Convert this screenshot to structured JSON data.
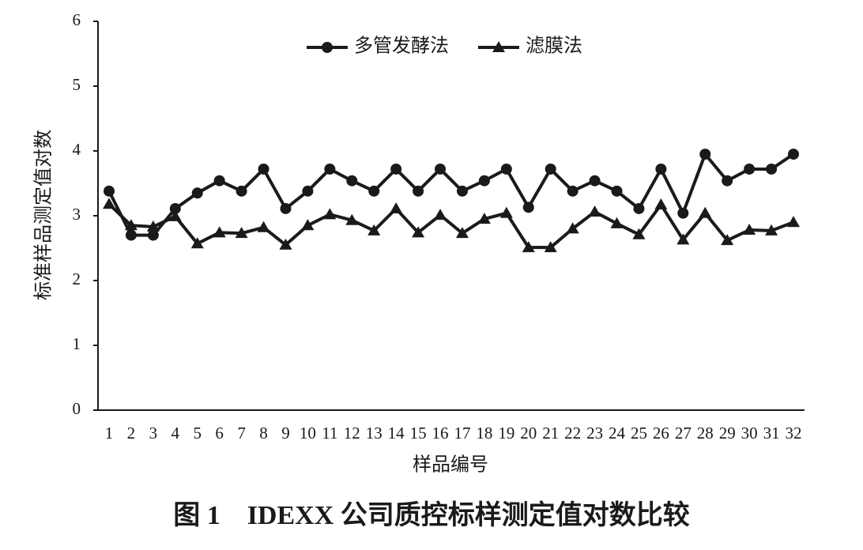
{
  "chart_data": {
    "type": "line",
    "title": "图 1　IDEXX 公司质控标样测定值对数比较",
    "x_label": "样品编号",
    "y_label": "标准样品测定值对数",
    "categories": [
      "1",
      "2",
      "3",
      "4",
      "5",
      "6",
      "7",
      "8",
      "9",
      "10",
      "11",
      "12",
      "13",
      "14",
      "15",
      "16",
      "17",
      "18",
      "19",
      "20",
      "21",
      "22",
      "23",
      "24",
      "25",
      "26",
      "27",
      "28",
      "29",
      "30",
      "31",
      "32"
    ],
    "series": [
      {
        "name": "多管发酵法",
        "color": "#1a1a1a",
        "marker": "circle",
        "values": [
          3.38,
          2.7,
          2.7,
          3.11,
          3.35,
          3.54,
          3.38,
          3.72,
          3.11,
          3.38,
          3.72,
          3.54,
          3.38,
          3.72,
          3.38,
          3.72,
          3.38,
          3.54,
          3.72,
          3.13,
          3.72,
          3.38,
          3.54,
          3.38,
          3.11,
          3.72,
          3.04,
          3.95,
          3.54,
          3.72,
          3.72,
          3.95
        ]
      },
      {
        "name": "滤膜法",
        "color": "#1a1a1a",
        "marker": "triangle",
        "values": [
          3.18,
          2.85,
          2.83,
          2.99,
          2.57,
          2.74,
          2.73,
          2.82,
          2.55,
          2.85,
          3.02,
          2.93,
          2.77,
          3.11,
          2.74,
          3.01,
          2.73,
          2.95,
          3.04,
          2.51,
          2.51,
          2.8,
          3.06,
          2.88,
          2.71,
          3.17,
          2.63,
          3.04,
          2.62,
          2.78,
          2.77,
          2.9
        ]
      }
    ],
    "ylim": [
      0,
      6
    ],
    "yticks": [
      0,
      1,
      2,
      3,
      4,
      5,
      6
    ],
    "grid": false,
    "legend": "top"
  }
}
